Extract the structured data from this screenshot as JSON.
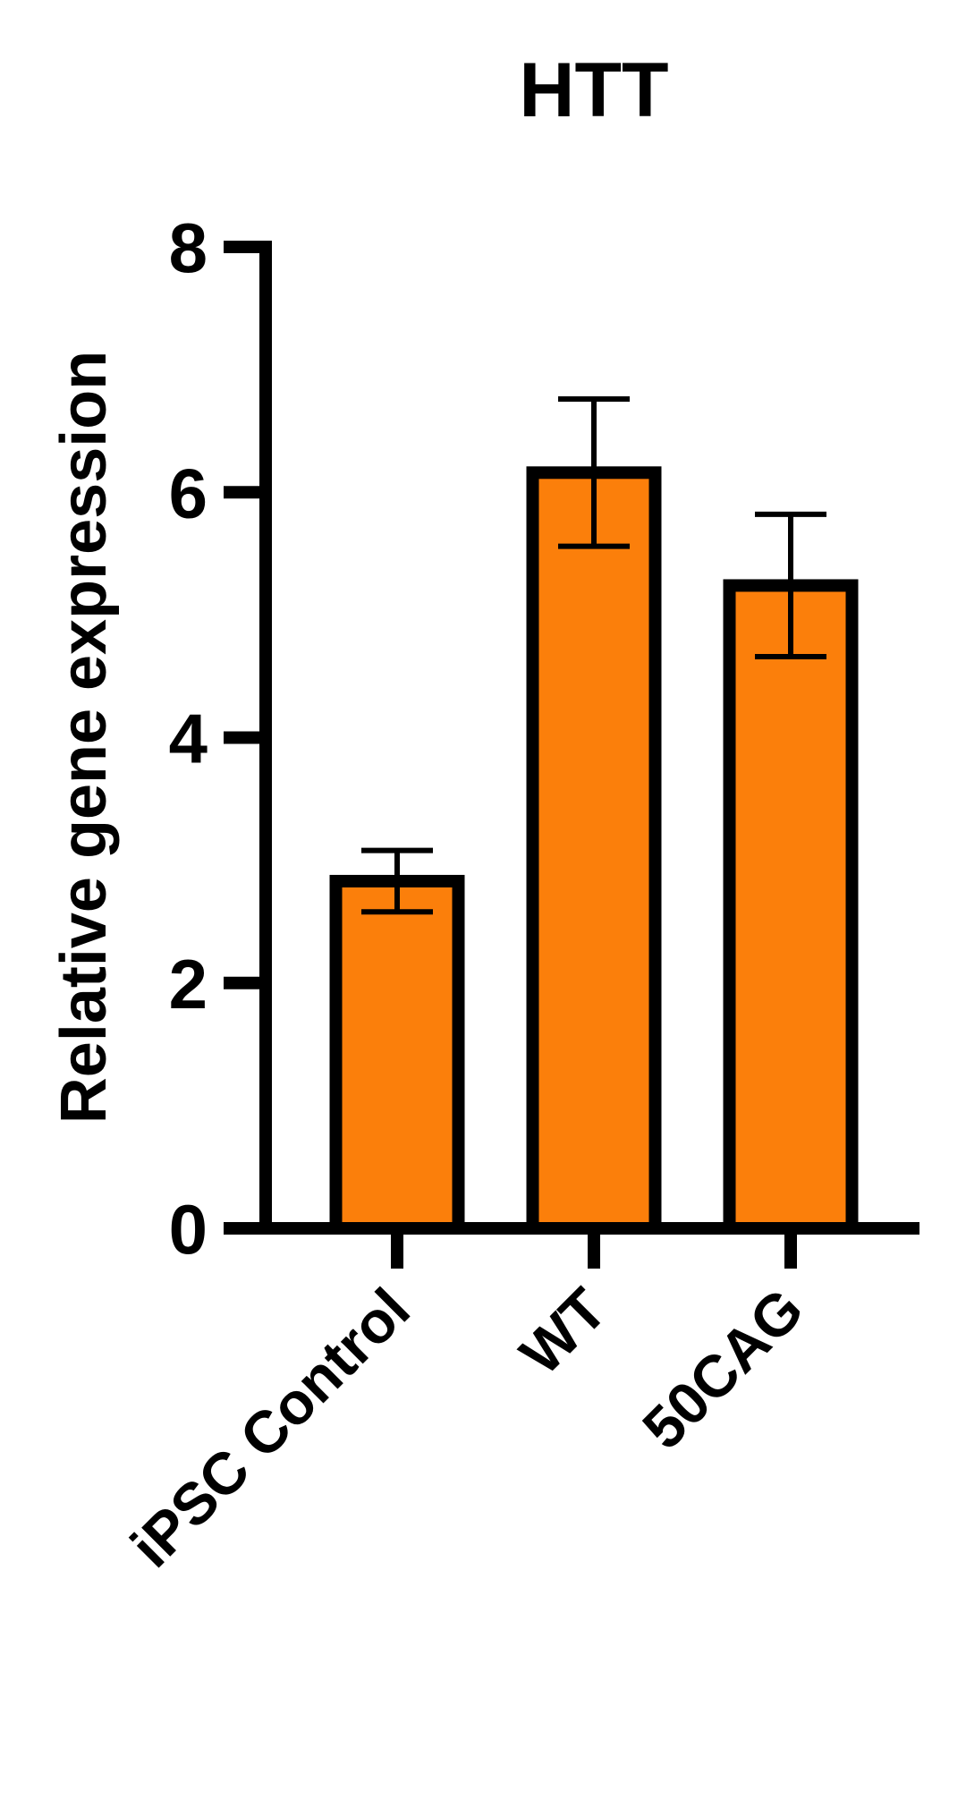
{
  "chart_data": {
    "type": "bar",
    "title": "HTT",
    "y_label": "Relative gene expression",
    "categories": [
      "iPSC Control",
      "WT",
      "50CAG"
    ],
    "values": [
      2.83,
      6.16,
      5.24
    ],
    "errors": [
      0.25,
      0.6,
      0.58
    ],
    "color": "#fb7f0b",
    "ylim": [
      0,
      8
    ],
    "yticks": [
      0,
      2,
      4,
      6,
      8
    ]
  }
}
